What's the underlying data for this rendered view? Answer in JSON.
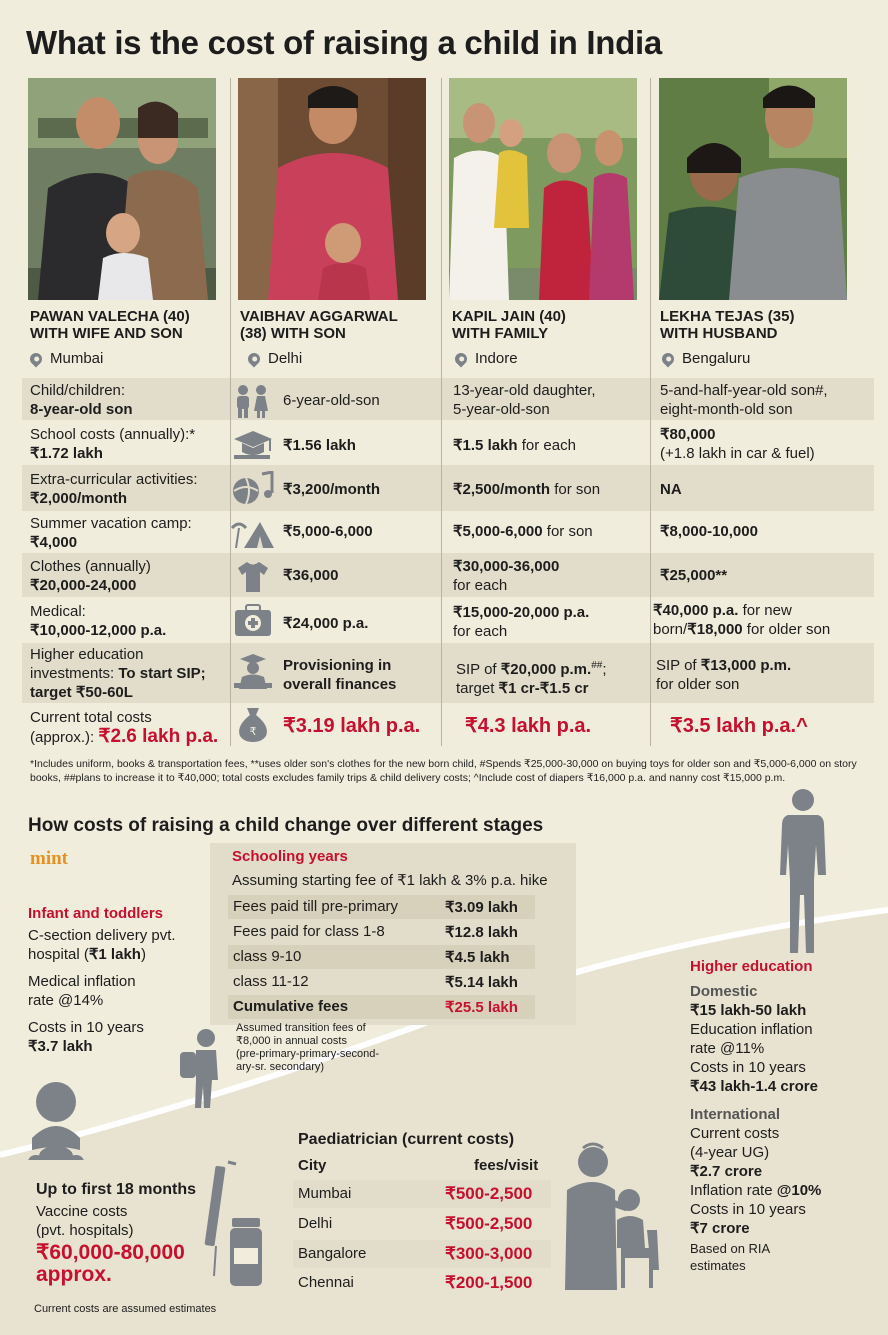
{
  "title": "What is the cost of raising a child in India",
  "families": [
    {
      "name_line1": "PAWAN VALECHA (40)",
      "name_line2": "WITH WIFE AND SON",
      "city": "Mumbai",
      "children": "Child/children:",
      "children_val": "8-year-old son",
      "school_label": "School costs (annually):*",
      "school": "₹1.72 lakh",
      "extra_label": "Extra-curricular activities:",
      "extra": "₹2,000/month",
      "camp_label": "Summer vacation camp:",
      "camp": "₹4,000",
      "clothes_label": "Clothes (annually)",
      "clothes": "₹20,000-24,000",
      "medical_label": "Medical:",
      "medical": "₹10,000-12,000 p.a.",
      "higher_label1": "Higher education",
      "higher_label2": "investments:",
      "higher_b1": "To start SIP;",
      "higher_b2": "target ₹50-60L",
      "total_label1": "Current total costs",
      "total_label2": "(approx.):",
      "total": "₹2.6 lakh p.a."
    },
    {
      "name_line1": "VAIBHAV AGGARWAL",
      "name_line2": "(38) WITH SON",
      "city": "Delhi",
      "children": "6-year-old-son",
      "school": "₹1.56 lakh",
      "extra": "₹3,200/month",
      "camp": "₹5,000-6,000",
      "clothes": "₹36,000",
      "medical": "₹24,000 p.a.",
      "higher1": "Provisioning in",
      "higher2": "overall finances",
      "total": "₹3.19 lakh p.a."
    },
    {
      "name_line1": "KAPIL JAIN (40)",
      "name_line2": "WITH FAMILY",
      "city": "Indore",
      "children1": "13-year-old daughter,",
      "children2": "5-year-old-son",
      "school": "₹1.5 lakh",
      "school_suffix": " for each",
      "extra": "₹2,500/month",
      "extra_suffix": " for son",
      "camp": "₹5,000-6,000",
      "camp_suffix": " for son",
      "clothes": "₹30,000-36,000",
      "clothes_suffix": "for each",
      "medical": "₹15,000-20,000 p.a.",
      "medical_suffix": "for each",
      "higher_pre": "SIP of ",
      "higher_b": "₹20,000 p.m.",
      "higher_sup": "##",
      "higher2_pre": "target ",
      "higher2_b": "₹1 cr-₹1.5 cr",
      "total": "₹4.3 lakh p.a."
    },
    {
      "name_line1": "LEKHA TEJAS (35)",
      "name_line2": "WITH HUSBAND",
      "city": "Bengaluru",
      "children1": "5-and-half-year-old son#,",
      "children2": "eight-month-old son",
      "school": "₹80,000",
      "school2": "(+1.8 lakh in car & fuel)",
      "extra": "NA",
      "camp": "₹8,000-10,000",
      "clothes": "₹25,000**",
      "medical_b1": "₹40,000 p.a.",
      "medical_1": " for new",
      "medical_2": "born/",
      "medical_b2": "₹18,000",
      "medical_3": " for older son",
      "higher_pre": "SIP of ",
      "higher_b": "₹13,000 p.m.",
      "higher2": "for older son",
      "total": "₹3.5 lakh p.a.^"
    }
  ],
  "footnote": "*Includes uniform, books & transportation fees, **uses older son's clothes for the new born child, #Spends ₹25,000-30,000 on buying toys for older son and ₹5,000-6,000 on story books, ##plans to increase it to ₹40,000; total costs excludes family trips & child delivery costs; ^Include cost of diapers ₹16,000 p.a. and nanny cost ₹15,000 p.m.",
  "stages_title": "How costs of raising a child change over different stages",
  "brand": "mint",
  "infant": {
    "title": "Infant and toddlers",
    "l1": "C-section delivery pvt.",
    "l2_pre": "hospital (",
    "l2_b": "₹1 lakh",
    "l2_post": ")",
    "l3": "Medical inflation",
    "l4": "rate @14%",
    "l5": "Costs in 10 years",
    "l6": "₹3.7 lakh"
  },
  "schooling": {
    "title": "Schooling years",
    "sub": "Assuming starting fee of ₹1 lakh & 3% p.a. hike",
    "rows": [
      {
        "label": "Fees paid till pre-primary",
        "value": "₹3.09 lakh"
      },
      {
        "label": "Fees paid for class 1-8",
        "value": "₹12.8 lakh"
      },
      {
        "label": "class 9-10",
        "value": "₹4.5 lakh"
      },
      {
        "label": "class 11-12",
        "value": "₹5.14 lakh"
      }
    ],
    "cum_label": "Cumulative fees",
    "cum_value": "₹25.5 lakh",
    "note1": "Assumed transition fees of",
    "note2": "₹8,000 in annual costs",
    "note3": "(pre-primary-primary-second-",
    "note4": "ary-sr. secondary)"
  },
  "higher": {
    "title": "Higher education",
    "domestic": "Domestic",
    "d1": "₹15 lakh-50 lakh",
    "d2": "Education inflation",
    "d3": "rate @11%",
    "d4": "Costs in 10 years",
    "d5": "₹43 lakh-1.4 crore",
    "international": "International",
    "i1": "Current costs",
    "i2": "(4-year UG)",
    "i3": "₹2.7 crore",
    "i4_pre": "Inflation rate ",
    "i4_b": "@10%",
    "i5": "Costs in 10 years",
    "i6": "₹7 crore",
    "i7": "Based on RIA",
    "i8": "estimates"
  },
  "paed": {
    "title": "Paediatrician (current costs)",
    "col1": "City",
    "col2": "fees/visit",
    "rows": [
      {
        "city": "Mumbai",
        "fee": "₹500-2,500"
      },
      {
        "city": "Delhi",
        "fee": "₹500-2,500"
      },
      {
        "city": "Bangalore",
        "fee": "₹300-3,000"
      },
      {
        "city": "Chennai",
        "fee": "₹200-1,500"
      }
    ]
  },
  "vaccine": {
    "title": "Up to first 18 months",
    "l1": "Vaccine costs",
    "l2": "(pvt. hospitals)",
    "v1": "₹60,000-80,000",
    "v2": "approx."
  },
  "bottom_note": "Current costs are assumed estimates",
  "colors": {
    "accent": "#c8102e",
    "bg": "#f1eddd",
    "shade": "#e2ddca",
    "icon": "#7d8288",
    "mint": "#e8901e"
  }
}
